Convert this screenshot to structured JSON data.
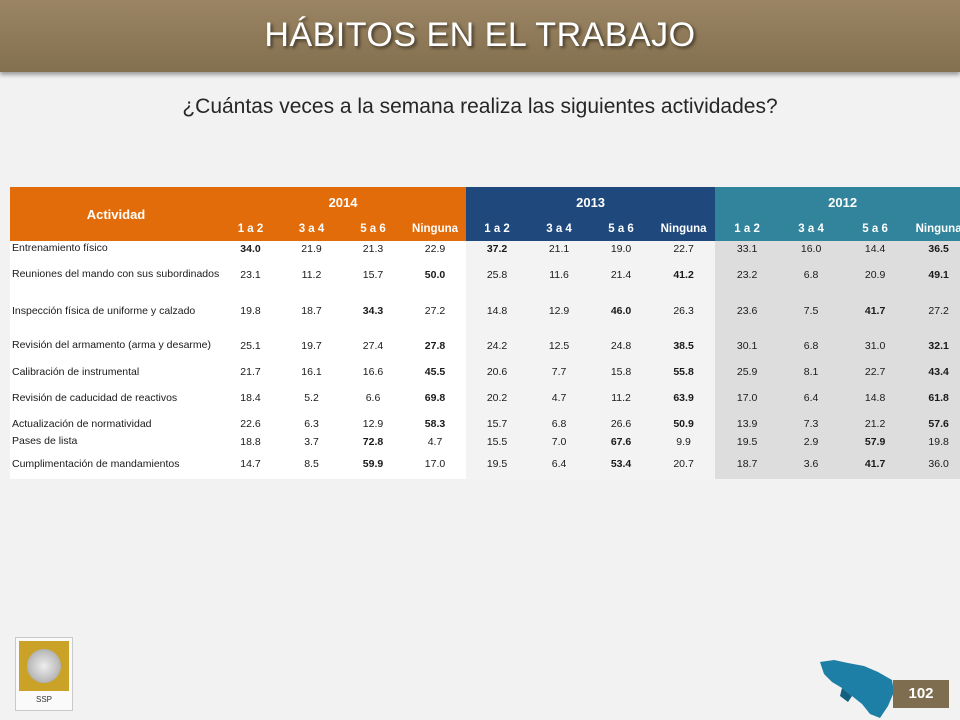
{
  "header": {
    "title": "HÁBITOS EN EL TRABAJO"
  },
  "subtitle": "¿Cuántas veces a la semana realiza las siguientes actividades?",
  "table": {
    "activity_header": "Actividad",
    "years": [
      "2014",
      "2013",
      "2012"
    ],
    "categories": [
      "1 a 2",
      "3 a 4",
      "5 a 6",
      "Ninguna"
    ],
    "rows": [
      {
        "label": "Entrenamiento físico",
        "values": [
          "34.0",
          "21.9",
          "21.3",
          "22.9",
          "37.2",
          "21.1",
          "19.0",
          "22.7",
          "33.1",
          "16.0",
          "14.4",
          "36.5"
        ],
        "bold": [
          0,
          4,
          11
        ]
      },
      {
        "label": "Reuniones del mando con sus subordinados",
        "values": [
          "23.1",
          "11.2",
          "15.7",
          "50.0",
          "25.8",
          "11.6",
          "21.4",
          "41.2",
          "23.2",
          "6.8",
          "20.9",
          "49.1"
        ],
        "bold": [
          3,
          7,
          11
        ]
      },
      {
        "label": "Inspección física de uniforme y calzado",
        "values": [
          "19.8",
          "18.7",
          "34.3",
          "27.2",
          "14.8",
          "12.9",
          "46.0",
          "26.3",
          "23.6",
          "7.5",
          "41.7",
          "27.2"
        ],
        "bold": [
          2,
          6,
          10
        ]
      },
      {
        "label": "Revisión del armamento (arma y desarme)",
        "values": [
          "25.1",
          "19.7",
          "27.4",
          "27.8",
          "24.2",
          "12.5",
          "24.8",
          "38.5",
          "30.1",
          "6.8",
          "31.0",
          "32.1"
        ],
        "bold": [
          3,
          7,
          11
        ]
      },
      {
        "label": "Calibración de instrumental",
        "values": [
          "21.7",
          "16.1",
          "16.6",
          "45.5",
          "20.6",
          "7.7",
          "15.8",
          "55.8",
          "25.9",
          "8.1",
          "22.7",
          "43.4"
        ],
        "bold": [
          3,
          7,
          11
        ]
      },
      {
        "label": "Revisión de caducidad de reactivos",
        "values": [
          "18.4",
          "5.2",
          "6.6",
          "69.8",
          "20.2",
          "4.7",
          "11.2",
          "63.9",
          "17.0",
          "6.4",
          "14.8",
          "61.8"
        ],
        "bold": [
          3,
          7,
          11
        ]
      },
      {
        "label": "Actualización de normatividad",
        "values": [
          "22.6",
          "6.3",
          "12.9",
          "58.3",
          "15.7",
          "6.8",
          "26.6",
          "50.9",
          "13.9",
          "7.3",
          "21.2",
          "57.6"
        ],
        "bold": [
          3,
          7,
          11
        ]
      },
      {
        "label": "Pases de lista",
        "values": [
          "18.8",
          "3.7",
          "72.8",
          "4.7",
          "15.5",
          "7.0",
          "67.6",
          "9.9",
          "19.5",
          "2.9",
          "57.9",
          "19.8"
        ],
        "bold": [
          2,
          6,
          10
        ]
      },
      {
        "label": "Cumplimentación de mandamientos",
        "values": [
          "14.7",
          "8.5",
          "59.9",
          "17.0",
          "19.5",
          "6.4",
          "53.4",
          "20.7",
          "18.7",
          "3.6",
          "41.7",
          "36.0"
        ],
        "bold": [
          2,
          6,
          10
        ]
      }
    ]
  },
  "logo": {
    "text": "SSP"
  },
  "map_icon": "state-map-icon",
  "page_number": "102",
  "colors": {
    "header": "#8b7656",
    "y2014": "#e36c0a",
    "y2013": "#1f497d",
    "y2012": "#31849b",
    "page_badge": "#7f6d4f"
  }
}
